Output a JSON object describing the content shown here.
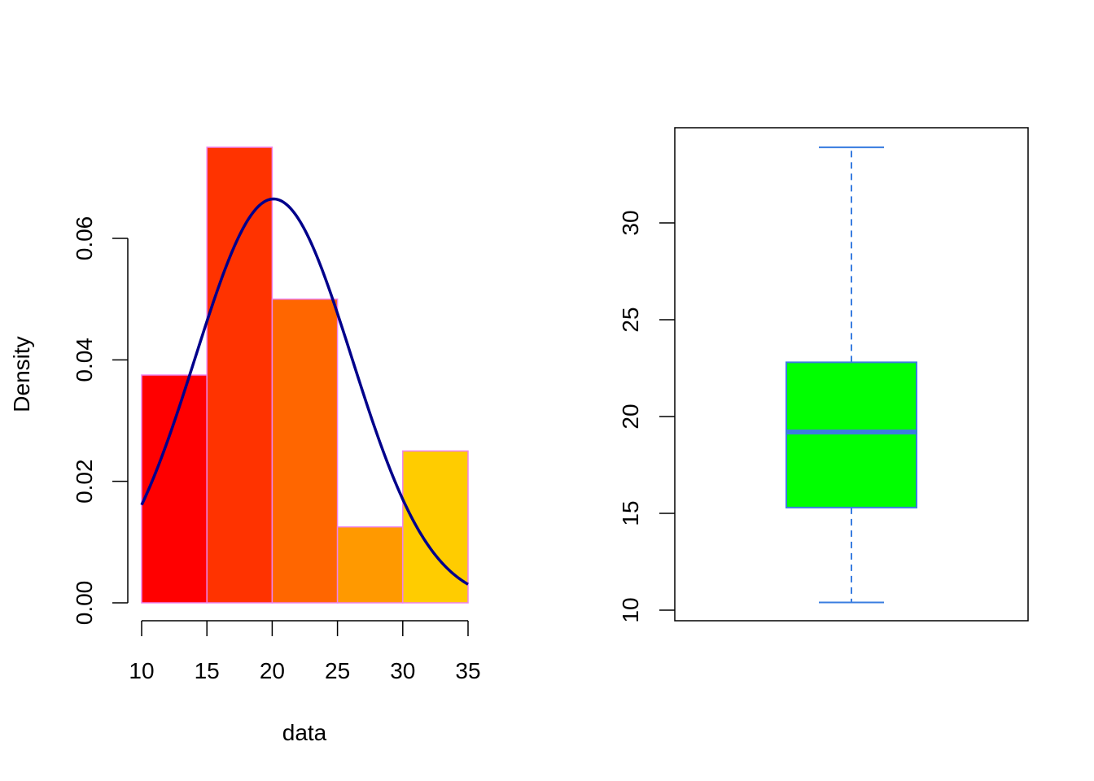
{
  "chart_data": [
    {
      "type": "bar",
      "subtype": "histogram",
      "xlabel": "data",
      "ylabel": "Density",
      "xlim": [
        10,
        35
      ],
      "ylim": [
        0,
        0.06
      ],
      "x_ticks": [
        "10",
        "15",
        "20",
        "25",
        "30",
        "35"
      ],
      "y_ticks": [
        "0.00",
        "0.02",
        "0.04",
        "0.06"
      ],
      "bins": [
        {
          "from": 10,
          "to": 15,
          "density": 0.0375,
          "color": "#ff0000"
        },
        {
          "from": 15,
          "to": 20,
          "density": 0.075,
          "color": "#ff3300"
        },
        {
          "from": 20,
          "to": 25,
          "density": 0.05,
          "color": "#ff6600"
        },
        {
          "from": 25,
          "to": 30,
          "density": 0.0125,
          "color": "#ff9900"
        },
        {
          "from": 30,
          "to": 35,
          "density": 0.025,
          "color": "#ffcc00"
        }
      ],
      "bin_border_color": "#ee82ee",
      "curve": {
        "type": "normal-density",
        "mean": 20.1,
        "sd": 6.0,
        "color": "#00008b"
      },
      "grid": false
    },
    {
      "type": "boxplot",
      "ylim": [
        10,
        34.5
      ],
      "y_ticks": [
        "10",
        "15",
        "20",
        "25",
        "30"
      ],
      "whisker_low": 10.4,
      "q1": 15.3,
      "median": 19.2,
      "q3": 22.8,
      "whisker_high": 33.9,
      "fill_color": "#00ff00",
      "border_color": "#3a7de0",
      "grid": false
    }
  ]
}
